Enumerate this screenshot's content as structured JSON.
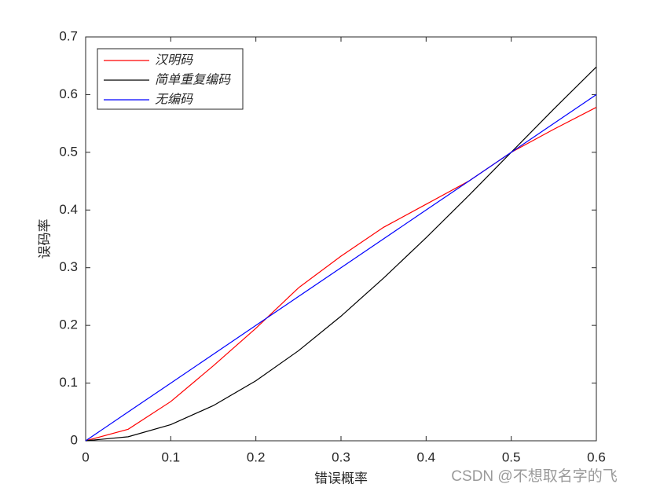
{
  "chart_data": {
    "type": "line",
    "xlabel": "错误概率",
    "ylabel": "误码率",
    "x": [
      0,
      0.05,
      0.1,
      0.15,
      0.2,
      0.25,
      0.3,
      0.35,
      0.4,
      0.45,
      0.5,
      0.55,
      0.6
    ],
    "series": [
      {
        "name": "汉明码",
        "color": "#ff0000",
        "values": [
          0,
          0.02,
          0.068,
          0.13,
          0.195,
          0.265,
          0.32,
          0.37,
          0.41,
          0.45,
          0.5,
          0.54,
          0.578
        ]
      },
      {
        "name": "简单重复编码",
        "color": "#000000",
        "values": [
          0,
          0.007,
          0.028,
          0.061,
          0.104,
          0.156,
          0.216,
          0.282,
          0.352,
          0.425,
          0.5,
          0.575,
          0.648
        ]
      },
      {
        "name": "无编码",
        "color": "#0000ff",
        "values": [
          0,
          0.05,
          0.1,
          0.15,
          0.2,
          0.25,
          0.3,
          0.35,
          0.4,
          0.45,
          0.5,
          0.55,
          0.6
        ]
      }
    ],
    "xlim": [
      0,
      0.6
    ],
    "xticks": [
      0,
      0.1,
      0.2,
      0.3,
      0.4,
      0.5,
      0.6
    ],
    "ylim": [
      0,
      0.7
    ],
    "yticks": [
      0,
      0.1,
      0.2,
      0.3,
      0.4,
      0.5,
      0.6,
      0.7
    ],
    "grid": false,
    "legend": "upper left",
    "watermark": "CSDN @不想取名字的飞"
  }
}
